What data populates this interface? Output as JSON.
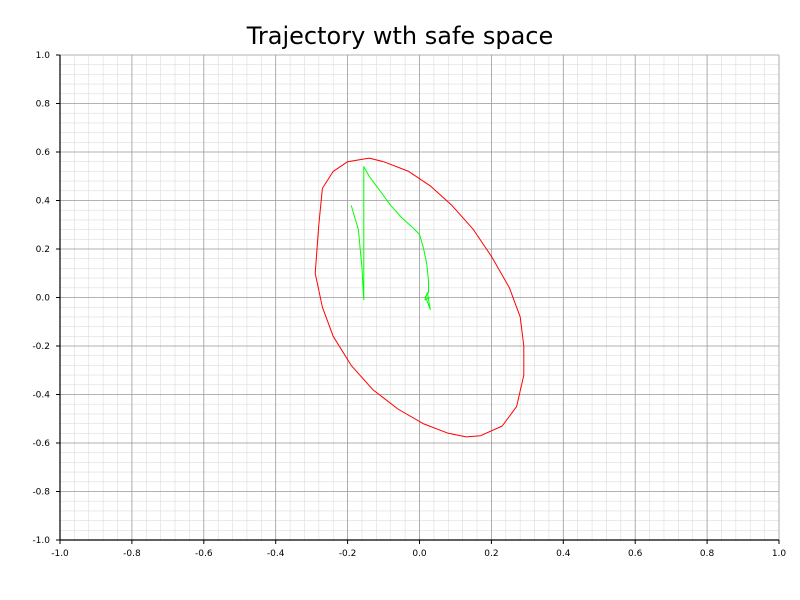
{
  "chart_data": {
    "type": "line",
    "title": "Trajectory wth safe space",
    "xlabel": "",
    "ylabel": "",
    "xlim": [
      -1.0,
      1.0
    ],
    "ylim": [
      -1.0,
      1.0
    ],
    "grid": true,
    "x_ticks": [
      "-1.0",
      "-0.8",
      "-0.6",
      "-0.4",
      "-0.2",
      "0.0",
      "0.2",
      "0.4",
      "0.6",
      "0.8",
      "1.0"
    ],
    "y_ticks": [
      "1.0",
      "0.8",
      "0.6",
      "0.4",
      "0.2",
      "0.0",
      "-0.2",
      "-0.4",
      "-0.6",
      "-0.8",
      "-1.0"
    ],
    "series": [
      {
        "color": "#ff0000",
        "points": [
          [
            -0.14,
            0.575
          ],
          [
            -0.1,
            0.56
          ],
          [
            -0.03,
            0.52
          ],
          [
            0.03,
            0.46
          ],
          [
            0.09,
            0.38
          ],
          [
            0.15,
            0.28
          ],
          [
            0.2,
            0.17
          ],
          [
            0.25,
            0.04
          ],
          [
            0.28,
            -0.08
          ],
          [
            0.29,
            -0.2
          ],
          [
            0.29,
            -0.32
          ],
          [
            0.27,
            -0.45
          ],
          [
            0.23,
            -0.53
          ],
          [
            0.17,
            -0.57
          ],
          [
            0.13,
            -0.575
          ],
          [
            0.08,
            -0.56
          ],
          [
            0.01,
            -0.52
          ],
          [
            -0.06,
            -0.46
          ],
          [
            -0.13,
            -0.38
          ],
          [
            -0.19,
            -0.28
          ],
          [
            -0.24,
            -0.16
          ],
          [
            -0.27,
            -0.04
          ],
          [
            -0.29,
            0.1
          ],
          [
            -0.28,
            0.3
          ],
          [
            -0.27,
            0.45
          ],
          [
            -0.24,
            0.52
          ],
          [
            -0.2,
            0.56
          ],
          [
            -0.14,
            0.575
          ]
        ]
      },
      {
        "color": "#00ff00",
        "points": [
          [
            -0.19,
            0.38
          ],
          [
            -0.18,
            0.33
          ],
          [
            -0.17,
            0.28
          ],
          [
            -0.165,
            0.2
          ],
          [
            -0.16,
            0.12
          ],
          [
            -0.155,
            -0.01
          ],
          [
            -0.155,
            0.54
          ],
          [
            -0.14,
            0.5
          ],
          [
            -0.11,
            0.44
          ],
          [
            -0.08,
            0.38
          ],
          [
            -0.05,
            0.33
          ],
          [
            -0.02,
            0.29
          ],
          [
            0.0,
            0.26
          ],
          [
            0.01,
            0.21
          ],
          [
            0.02,
            0.14
          ],
          [
            0.025,
            0.07
          ],
          [
            0.025,
            0.02
          ],
          [
            0.015,
            0.0
          ],
          [
            0.02,
            -0.01
          ],
          [
            0.025,
            -0.03
          ],
          [
            0.03,
            -0.05
          ],
          [
            0.022,
            0.02
          ],
          [
            0.015,
            -0.01
          ],
          [
            0.028,
            0.0
          ]
        ]
      }
    ]
  }
}
